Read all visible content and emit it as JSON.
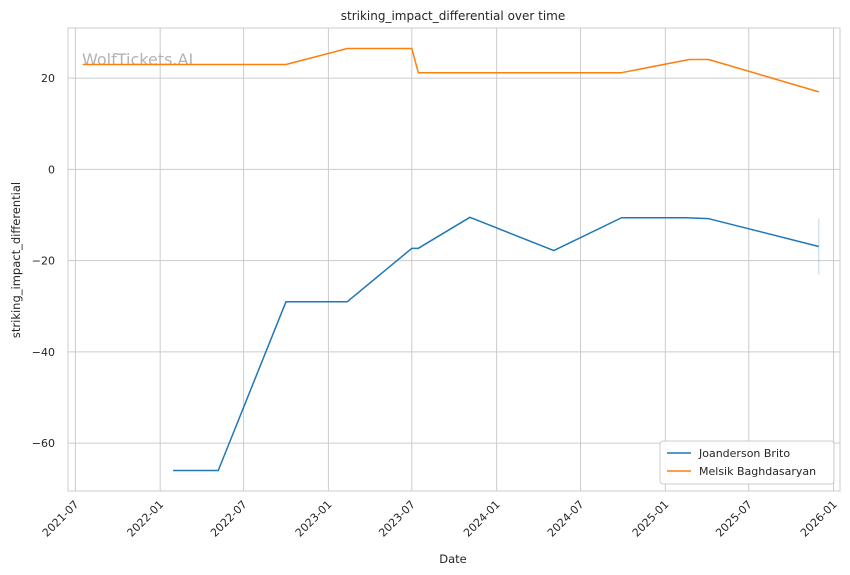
{
  "chart_data": {
    "type": "line",
    "title": "striking_impact_differential over time",
    "xlabel": "Date",
    "ylabel": "striking_impact_differential",
    "watermark": "WolfTickets.AI",
    "xlim": [
      "2021-06-15",
      "2026-01-15"
    ],
    "ylim": [
      -70.5,
      31
    ],
    "x_ticks": [
      "2021-07",
      "2022-01",
      "2022-07",
      "2023-01",
      "2023-07",
      "2024-01",
      "2024-07",
      "2025-01",
      "2025-07",
      "2026-01"
    ],
    "y_ticks": [
      -60,
      -40,
      -20,
      0,
      20
    ],
    "grid": true,
    "legend_position": "bottom-right",
    "series": [
      {
        "name": "Joanderson Brito",
        "color": "#1f77b4",
        "points": [
          {
            "x": "2022-01-29",
            "y": -66
          },
          {
            "x": "2022-05-07",
            "y": -66
          },
          {
            "x": "2022-10-01",
            "y": -29
          },
          {
            "x": "2023-02-11",
            "y": -29
          },
          {
            "x": "2023-07-01",
            "y": -17.3
          },
          {
            "x": "2023-07-15",
            "y": -17.3
          },
          {
            "x": "2023-11-04",
            "y": -10.5
          },
          {
            "x": "2024-05-04",
            "y": -17.8
          },
          {
            "x": "2024-09-28",
            "y": -10.6
          },
          {
            "x": "2025-02-15",
            "y": -10.6
          },
          {
            "x": "2025-04-05",
            "y": -10.8
          },
          {
            "x": "2025-11-30",
            "y": -16.9
          }
        ]
      },
      {
        "name": "Melsik Baghdasaryan",
        "color": "#ff7f0e",
        "points": [
          {
            "x": "2021-07-17",
            "y": 23
          },
          {
            "x": "2022-10-01",
            "y": 23
          },
          {
            "x": "2023-02-11",
            "y": 26.5
          },
          {
            "x": "2023-07-01",
            "y": 26.5
          },
          {
            "x": "2023-07-15",
            "y": 21.2
          },
          {
            "x": "2024-09-28",
            "y": 21.2
          },
          {
            "x": "2025-02-22",
            "y": 24.1
          },
          {
            "x": "2025-04-05",
            "y": 24.1
          },
          {
            "x": "2025-11-30",
            "y": 17
          }
        ]
      }
    ],
    "error_bars": [
      {
        "x": "2025-11-30",
        "y_low": -23,
        "y_high": -10.8,
        "color": "#1f77b4"
      }
    ]
  }
}
